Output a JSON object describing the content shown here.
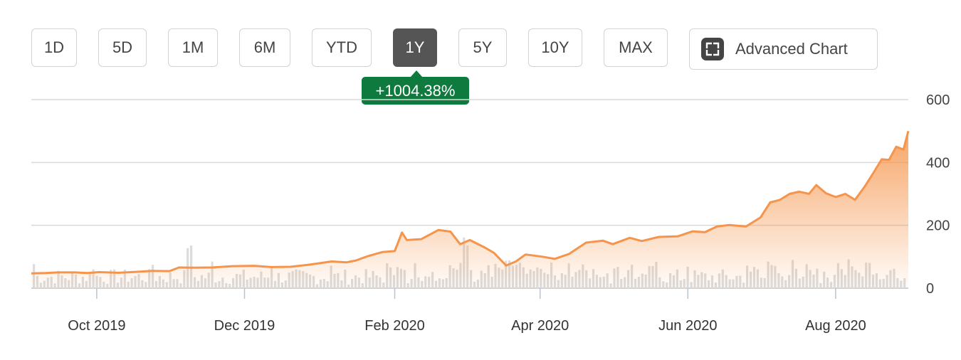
{
  "range_buttons": [
    {
      "label": "1D",
      "active": false
    },
    {
      "label": "5D",
      "active": false
    },
    {
      "label": "1M",
      "active": false
    },
    {
      "label": "6M",
      "active": false
    },
    {
      "label": "YTD",
      "active": false
    },
    {
      "label": "1Y",
      "active": true
    },
    {
      "label": "5Y",
      "active": false
    },
    {
      "label": "10Y",
      "active": false
    },
    {
      "label": "MAX",
      "active": false
    }
  ],
  "advanced_chart": {
    "label": "Advanced Chart",
    "icon": "expand-icon"
  },
  "change_badge": {
    "text": "+1004.38%",
    "color": "#0f7a3d"
  },
  "colors": {
    "line": "#f5944a",
    "volume": "#dcdcdc",
    "grid": "#d9d9d9",
    "active_button": "#555555"
  },
  "chart_data": {
    "type": "area",
    "price_axis": {
      "ticks": [
        0,
        200,
        400,
        600
      ],
      "labels": [
        "0",
        "200",
        "400",
        "600"
      ],
      "ylim": [
        0,
        600
      ],
      "position": "right"
    },
    "x_ticks": [
      {
        "date": "2019-10-01",
        "label": "Oct 2019"
      },
      {
        "date": "2019-12-01",
        "label": "Dec 2019"
      },
      {
        "date": "2020-02-01",
        "label": "Feb 2020"
      },
      {
        "date": "2020-04-01",
        "label": "Apr 2020"
      },
      {
        "date": "2020-06-01",
        "label": "Jun 2020"
      },
      {
        "date": "2020-08-01",
        "label": "Aug 2020"
      }
    ],
    "x_range": [
      "2019-09-04",
      "2020-08-31"
    ],
    "series": [
      {
        "values": [
          {
            "x": "2019-09-04",
            "y": 47
          },
          {
            "x": "2019-09-10",
            "y": 48
          },
          {
            "x": "2019-09-15",
            "y": 50
          },
          {
            "x": "2019-09-22",
            "y": 50
          },
          {
            "x": "2019-09-27",
            "y": 48
          },
          {
            "x": "2019-10-02",
            "y": 51
          },
          {
            "x": "2019-10-10",
            "y": 49
          },
          {
            "x": "2019-10-18",
            "y": 52
          },
          {
            "x": "2019-10-24",
            "y": 55
          },
          {
            "x": "2019-10-31",
            "y": 54
          },
          {
            "x": "2019-11-04",
            "y": 66
          },
          {
            "x": "2019-11-10",
            "y": 65
          },
          {
            "x": "2019-11-18",
            "y": 66
          },
          {
            "x": "2019-11-26",
            "y": 70
          },
          {
            "x": "2019-12-05",
            "y": 71
          },
          {
            "x": "2019-12-12",
            "y": 67
          },
          {
            "x": "2019-12-20",
            "y": 68
          },
          {
            "x": "2019-12-28",
            "y": 75
          },
          {
            "x": "2020-01-06",
            "y": 85
          },
          {
            "x": "2020-01-12",
            "y": 82
          },
          {
            "x": "2020-01-16",
            "y": 88
          },
          {
            "x": "2020-01-21",
            "y": 102
          },
          {
            "x": "2020-01-27",
            "y": 115
          },
          {
            "x": "2020-02-01",
            "y": 118
          },
          {
            "x": "2020-02-04",
            "y": 177
          },
          {
            "x": "2020-02-06",
            "y": 153
          },
          {
            "x": "2020-02-12",
            "y": 156
          },
          {
            "x": "2020-02-19",
            "y": 185
          },
          {
            "x": "2020-02-24",
            "y": 180
          },
          {
            "x": "2020-02-28",
            "y": 140
          },
          {
            "x": "2020-03-03",
            "y": 153
          },
          {
            "x": "2020-03-09",
            "y": 130
          },
          {
            "x": "2020-03-13",
            "y": 112
          },
          {
            "x": "2020-03-18",
            "y": 72
          },
          {
            "x": "2020-03-22",
            "y": 85
          },
          {
            "x": "2020-03-26",
            "y": 107
          },
          {
            "x": "2020-04-02",
            "y": 100
          },
          {
            "x": "2020-04-07",
            "y": 93
          },
          {
            "x": "2020-04-13",
            "y": 109
          },
          {
            "x": "2020-04-20",
            "y": 145
          },
          {
            "x": "2020-04-27",
            "y": 151
          },
          {
            "x": "2020-05-01",
            "y": 140
          },
          {
            "x": "2020-05-08",
            "y": 160
          },
          {
            "x": "2020-05-13",
            "y": 150
          },
          {
            "x": "2020-05-20",
            "y": 163
          },
          {
            "x": "2020-05-28",
            "y": 165
          },
          {
            "x": "2020-06-03",
            "y": 181
          },
          {
            "x": "2020-06-08",
            "y": 178
          },
          {
            "x": "2020-06-13",
            "y": 196
          },
          {
            "x": "2020-06-18",
            "y": 201
          },
          {
            "x": "2020-06-25",
            "y": 196
          },
          {
            "x": "2020-07-01",
            "y": 225
          },
          {
            "x": "2020-07-05",
            "y": 273
          },
          {
            "x": "2020-07-09",
            "y": 281
          },
          {
            "x": "2020-07-13",
            "y": 300
          },
          {
            "x": "2020-07-17",
            "y": 307
          },
          {
            "x": "2020-07-21",
            "y": 300
          },
          {
            "x": "2020-07-24",
            "y": 328
          },
          {
            "x": "2020-07-28",
            "y": 302
          },
          {
            "x": "2020-08-01",
            "y": 290
          },
          {
            "x": "2020-08-05",
            "y": 300
          },
          {
            "x": "2020-08-09",
            "y": 281
          },
          {
            "x": "2020-08-13",
            "y": 323
          },
          {
            "x": "2020-08-17",
            "y": 372
          },
          {
            "x": "2020-08-20",
            "y": 410
          },
          {
            "x": "2020-08-23",
            "y": 408
          },
          {
            "x": "2020-08-26",
            "y": 450
          },
          {
            "x": "2020-08-29",
            "y": 441
          },
          {
            "x": "2020-08-31",
            "y": 500
          }
        ]
      }
    ],
    "volume_max": 125
  }
}
